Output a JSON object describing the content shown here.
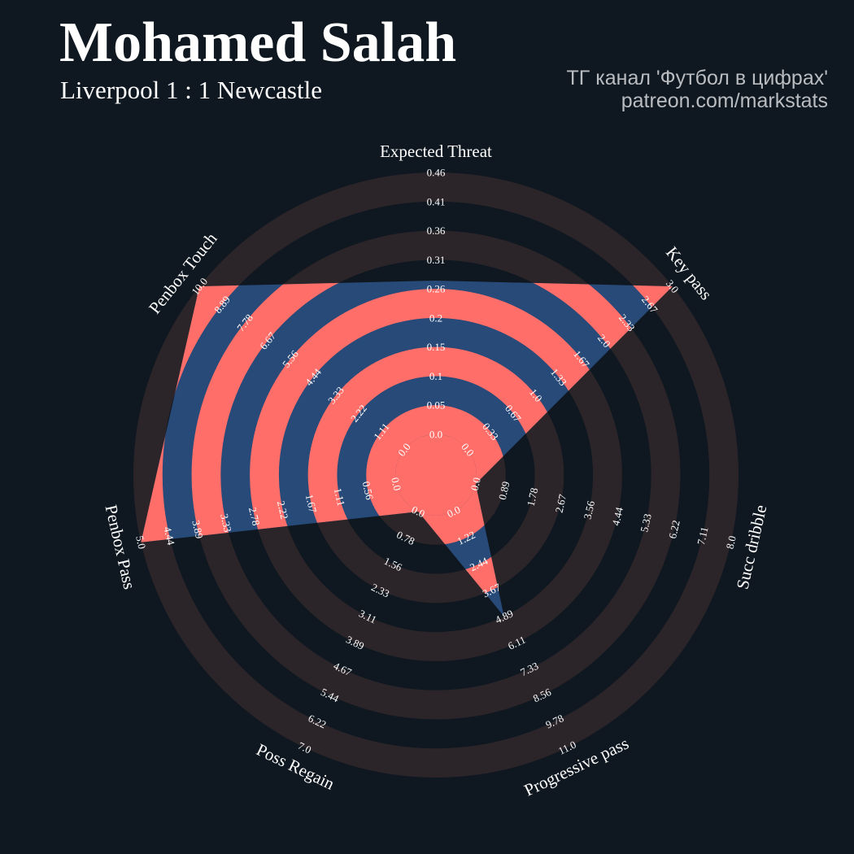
{
  "header": {
    "title": "Mohamed Salah",
    "subtitle": "Liverpool 1 : 1 Newcastle",
    "credit_line1": "ТГ канал 'Футбол в цифрах'",
    "credit_line2": "patreon.com/markstats"
  },
  "colors": {
    "background": "#0f1820",
    "ring_band": "#2b2529",
    "value_band": "#ff6e68",
    "value_area": "#284a78",
    "text": "#ffffff"
  },
  "chart_data": {
    "type": "radar",
    "params": [
      {
        "name": "Expected Threat",
        "min": 0.0,
        "max": 0.46,
        "value": 0.27,
        "ticks": [
          "0.0",
          "0.05",
          "0.1",
          "0.15",
          "0.2",
          "0.26",
          "0.31",
          "0.36",
          "0.41",
          "0.46"
        ]
      },
      {
        "name": "Key pass",
        "min": 0.0,
        "max": 3.0,
        "value": 3.0,
        "ticks": [
          "0.0",
          "0.33",
          "0.67",
          "1.0",
          "1.33",
          "1.67",
          "2.0",
          "2.33",
          "2.67",
          "3.0"
        ]
      },
      {
        "name": "Succ dribble",
        "min": 0.0,
        "max": 8.0,
        "value": 0.0,
        "ticks": [
          "0.0",
          "0.89",
          "1.78",
          "2.67",
          "3.56",
          "4.44",
          "5.33",
          "6.22",
          "7.11",
          "8.0"
        ]
      },
      {
        "name": "Progressive pass",
        "min": 0.0,
        "max": 11.0,
        "value": 4.89,
        "ticks": [
          "0.0",
          "1.22",
          "2.44",
          "3.67",
          "4.89",
          "6.11",
          "7.33",
          "8.56",
          "9.78",
          "11.0"
        ]
      },
      {
        "name": "Poss Regain",
        "min": 0.0,
        "max": 7.0,
        "value": 0.0,
        "ticks": [
          "0.0",
          "0.78",
          "1.56",
          "2.33",
          "3.11",
          "3.89",
          "4.67",
          "5.44",
          "6.22",
          "7.0"
        ]
      },
      {
        "name": "Penbox Pass",
        "min": 0.0,
        "max": 5.0,
        "value": 5.0,
        "ticks": [
          "0.0",
          "0.56",
          "1.11",
          "1.67",
          "2.22",
          "2.78",
          "3.33",
          "3.89",
          "4.44",
          "5.0"
        ]
      },
      {
        "name": "Penbox Touch",
        "min": 0.0,
        "max": 10.0,
        "value": 10.0,
        "ticks": [
          "0.0",
          "1.11",
          "2.22",
          "3.33",
          "4.44",
          "5.56",
          "6.67",
          "7.78",
          "8.89",
          "10.0"
        ]
      }
    ]
  }
}
